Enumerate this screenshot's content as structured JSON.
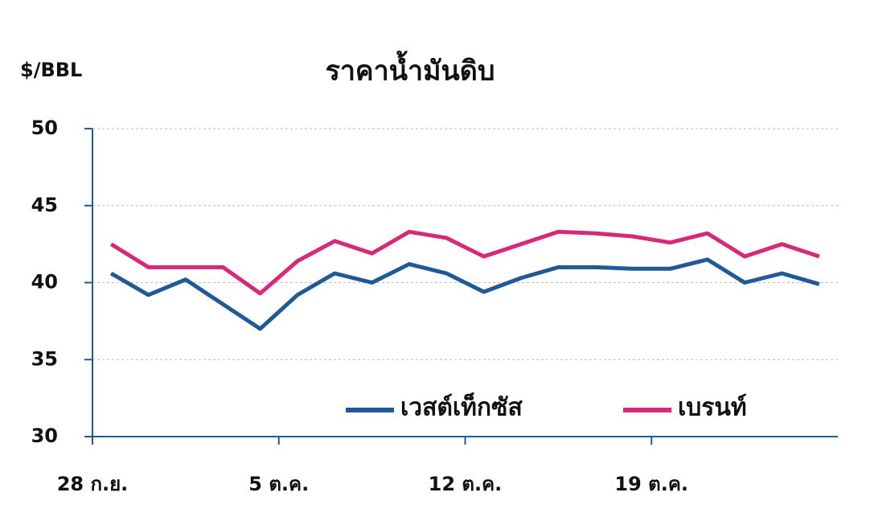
{
  "chart_data": {
    "type": "line",
    "title": "ราคาน้ำมันดิบ",
    "y_label": "$/BBL",
    "categories": [
      "28 ก.ย.",
      null,
      null,
      null,
      null,
      "5 ต.ค.",
      null,
      null,
      null,
      null,
      "12 ต.ค.",
      null,
      null,
      null,
      null,
      "19 ต.ค.",
      null,
      null,
      null,
      null
    ],
    "series": [
      {
        "name": "เวสต์เท็กซัส",
        "color": "#1f5a96",
        "values": [
          40.6,
          39.2,
          40.2,
          38.6,
          37.0,
          39.2,
          40.6,
          40.0,
          41.2,
          40.6,
          39.4,
          40.3,
          41.0,
          41.0,
          40.9,
          40.9,
          41.5,
          40.0,
          40.6,
          39.9
        ]
      },
      {
        "name": "เบรนท์",
        "color": "#d6297a",
        "values": [
          42.5,
          41.0,
          41.0,
          41.0,
          39.3,
          41.4,
          42.7,
          41.9,
          43.3,
          42.9,
          41.7,
          42.5,
          43.3,
          43.2,
          43.0,
          42.6,
          43.2,
          41.7,
          42.5,
          41.7
        ]
      }
    ],
    "ylim": [
      30,
      50
    ],
    "yticks": [
      30,
      35,
      40,
      45,
      50
    ],
    "grid": true,
    "legend": "lower-right"
  }
}
